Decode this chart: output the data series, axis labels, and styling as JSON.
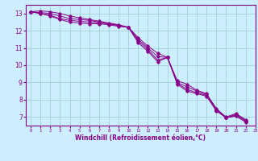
{
  "xlabel": "Windchill (Refroidissement éolien,°C)",
  "background_color": "#cceeff",
  "line_color": "#880088",
  "grid_color": "#99cccc",
  "xlim": [
    -0.5,
    23
  ],
  "ylim": [
    6.5,
    13.5
  ],
  "yticks": [
    7,
    8,
    9,
    10,
    11,
    12,
    13
  ],
  "xticks": [
    0,
    1,
    2,
    3,
    4,
    5,
    6,
    7,
    8,
    9,
    10,
    11,
    12,
    13,
    14,
    15,
    16,
    17,
    18,
    19,
    20,
    21,
    22,
    23
  ],
  "series": [
    [
      13.1,
      13.15,
      13.1,
      13.0,
      12.85,
      12.75,
      12.65,
      12.55,
      12.45,
      12.35,
      12.2,
      11.6,
      11.1,
      10.7,
      10.45,
      9.1,
      8.9,
      8.55,
      8.35,
      7.45,
      7.0,
      7.2,
      6.85
    ],
    [
      13.1,
      13.05,
      13.0,
      12.85,
      12.7,
      12.65,
      12.6,
      12.5,
      12.4,
      12.3,
      12.2,
      11.5,
      11.0,
      10.5,
      10.45,
      9.0,
      8.75,
      8.5,
      8.3,
      7.5,
      6.95,
      7.15,
      6.8
    ],
    [
      13.1,
      13.0,
      12.9,
      12.7,
      12.6,
      12.55,
      12.5,
      12.45,
      12.4,
      12.3,
      12.2,
      11.4,
      10.9,
      10.3,
      10.45,
      8.95,
      8.6,
      8.4,
      8.25,
      7.4,
      6.95,
      7.1,
      6.75
    ],
    [
      13.1,
      13.0,
      12.85,
      12.65,
      12.5,
      12.45,
      12.4,
      12.4,
      12.35,
      12.25,
      12.2,
      11.3,
      10.8,
      10.2,
      10.45,
      8.9,
      8.5,
      8.35,
      8.2,
      7.35,
      6.95,
      7.05,
      6.7
    ]
  ],
  "figsize": [
    3.2,
    2.0
  ],
  "dpi": 100
}
